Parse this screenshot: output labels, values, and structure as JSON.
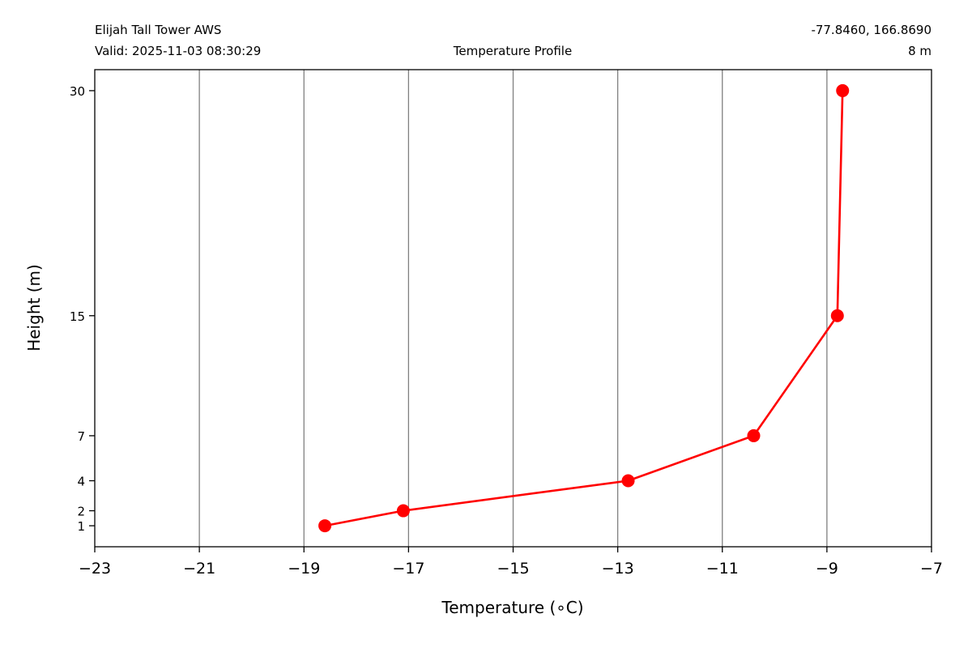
{
  "header": {
    "station_name": "Elijah Tall Tower AWS",
    "valid_time": "Valid: 2025-11-03 08:30:29",
    "coordinates": "-77.8460, 166.8690",
    "elevation": "8 m"
  },
  "chart_data": {
    "type": "line",
    "title": "Temperature Profile",
    "xlabel": "Temperature (∘C)",
    "ylabel": "Height (m)",
    "xlim": [
      -23,
      -7
    ],
    "ylim": [
      -0.4,
      31.4
    ],
    "x_ticks": [
      -23,
      -21,
      -19,
      -17,
      -15,
      -13,
      -11,
      -9,
      -7
    ],
    "x_tick_labels": [
      "−23",
      "−21",
      "−19",
      "−17",
      "−15",
      "−13",
      "−11",
      "−9",
      "−7"
    ],
    "y_ticks": [
      1,
      2,
      4,
      7,
      15,
      30
    ],
    "y_tick_labels": [
      "1",
      "2",
      "4",
      "7",
      "15",
      "30"
    ],
    "grid": "vertical",
    "series": [
      {
        "color": "#ff0000",
        "marker": "circle",
        "points": [
          {
            "temperature": -18.6,
            "height": 1
          },
          {
            "temperature": -17.1,
            "height": 2
          },
          {
            "temperature": -12.8,
            "height": 4
          },
          {
            "temperature": -10.4,
            "height": 7
          },
          {
            "temperature": -8.8,
            "height": 15
          },
          {
            "temperature": -8.7,
            "height": 30
          }
        ]
      }
    ],
    "grid_color": "#808080"
  }
}
